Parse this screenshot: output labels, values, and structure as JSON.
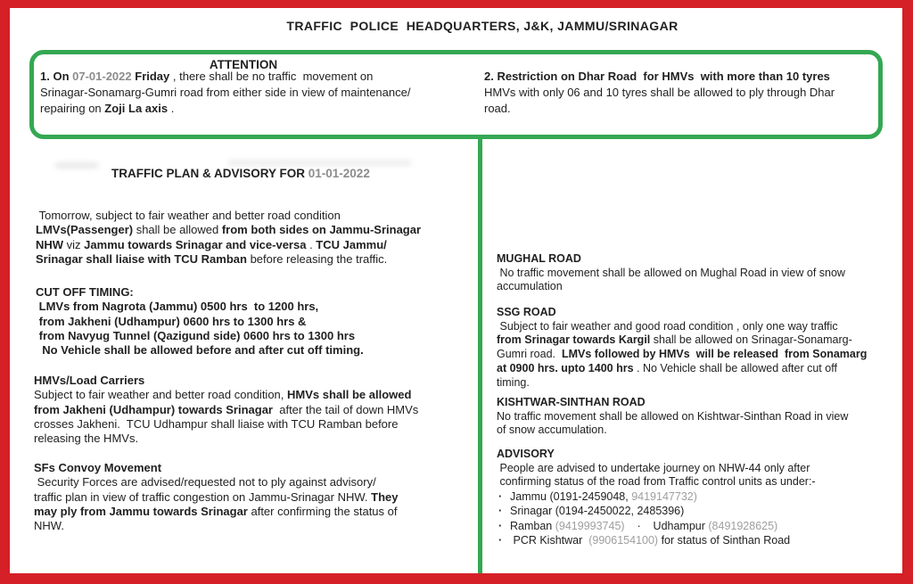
{
  "page": {
    "title": "TRAFFIC  POLICE  HEADQUARTERS, J&K, JAMMU/SRINAGAR",
    "colors": {
      "red": "#d42026",
      "green": "#34a853",
      "gray": "#8c8c8c",
      "gray_light": "#9e9e9e",
      "ink": "#212121"
    }
  },
  "attention": {
    "heading": "ATTENTION",
    "item1": [
      {
        "t": "1. On ",
        "b": true
      },
      {
        "t": "07-01-2022",
        "b": true,
        "c": "gray"
      },
      {
        "t": " "
      },
      {
        "t": "Friday",
        "b": true
      },
      {
        "t": " , there shall be no traffic  movement on"
      },
      {
        "t": "Srinagar-Sonamarg-Gumri road from either side in view of maintenance/",
        "nl": true
      },
      {
        "t": "repairing on ",
        "nl": true
      },
      {
        "t": "Zoji La axis",
        "b": true
      },
      {
        "t": " ."
      }
    ],
    "item2": [
      {
        "t": "2. Restriction on Dhar Road  for HMVs  with more than 10 tyres",
        "b": true
      },
      {
        "t": "HMVs with only 06 and 10 tyres shall be allowed to ply through Dhar",
        "nl": true
      },
      {
        "t": "road.",
        "nl": true
      }
    ]
  },
  "plan": {
    "heading": [
      {
        "t": "TRAFFIC PLAN & ADVISORY FOR ",
        "b": true
      },
      {
        "t": "01-01-2022",
        "b": true,
        "c": "gray"
      }
    ],
    "intro": [
      {
        "t": " Tomorrow, subject to fair weather and better road condition"
      },
      {
        "t": "LMVs(Passenger)",
        "b": true,
        "nl": true
      },
      {
        "t": " shall be allowed "
      },
      {
        "t": "from both sides on Jammu-Srinagar",
        "b": true
      },
      {
        "t": "NHW",
        "b": true,
        "nl": true
      },
      {
        "t": " viz "
      },
      {
        "t": "Jammu towards Srinagar and vice-versa",
        "b": true
      },
      {
        "t": " . "
      },
      {
        "t": "TCU Jammu/",
        "b": true
      },
      {
        "t": "Srinagar shall liaise with TCU Ramban",
        "b": true,
        "nl": true
      },
      {
        "t": " before releasing the traffic."
      }
    ],
    "cutoff": {
      "heading": "CUT OFF TIMING:",
      "body": [
        {
          "t": " LMVs from Nagrota (Jammu) 0500 hrs  to 1200 hrs,",
          "b": true
        },
        {
          "t": " from Jakheni (Udhampur) 0600 hrs to 1300 hrs &",
          "b": true,
          "nl": true
        },
        {
          "t": " from Navyug Tunnel (Qazigund side) 0600 hrs to 1300 hrs",
          "b": true,
          "nl": true
        },
        {
          "t": "  No Vehicle shall be allowed before and after cut off timing.",
          "b": true,
          "nl": true
        }
      ]
    },
    "hmvs": {
      "heading": "HMVs/Load Carriers",
      "body": [
        {
          "t": "Subject to fair weather and better road condition, "
        },
        {
          "t": "HMVs shall be allowed",
          "b": true
        },
        {
          "t": "from Jakheni (Udhampur) towards Srinagar",
          "b": true,
          "nl": true
        },
        {
          "t": "  after the tail of down HMVs"
        },
        {
          "t": "crosses Jakheni.  TCU Udhampur shall liaise with TCU Ramban before",
          "nl": true
        },
        {
          "t": "releasing the HMVs.",
          "nl": true
        }
      ]
    },
    "sfs": {
      "heading": "SFs Convoy Movement",
      "body": [
        {
          "t": " Security Forces are advised/requested not to ply against advisory/"
        },
        {
          "t": "traffic plan in view of traffic congestion on Jammu-Srinagar NHW. ",
          "nl": true
        },
        {
          "t": "They",
          "b": true
        },
        {
          "t": "may ply from Jammu towards Srinagar",
          "b": true,
          "nl": true
        },
        {
          "t": " after confirming the status of"
        },
        {
          "t": "NHW.",
          "nl": true
        }
      ]
    }
  },
  "roads": {
    "mughal": {
      "heading": "MUGHAL ROAD",
      "body": [
        {
          "t": " No traffic movement shall be allowed on Mughal Road in view of snow"
        },
        {
          "t": "accumulation",
          "nl": true
        }
      ]
    },
    "ssg": {
      "heading": "SSG ROAD",
      "body": [
        {
          "t": " Subject to fair weather and good road condition , only one way traffic"
        },
        {
          "t": "from Srinagar towards Kargil",
          "b": true,
          "nl": true
        },
        {
          "t": " shall be allowed on Srinagar-Sonamarg-"
        },
        {
          "t": "Gumri road.  ",
          "nl": true
        },
        {
          "t": "LMVs followed by HMVs  will be released  from Sonamarg",
          "b": true
        },
        {
          "t": "at 0900 hrs. upto 1400 hrs",
          "b": true,
          "nl": true
        },
        {
          "t": " . No Vehicle shall be allowed after cut off"
        },
        {
          "t": "timing.",
          "nl": true
        }
      ]
    },
    "kishtwar": {
      "heading": "KISHTWAR-SINTHAN ROAD",
      "body": [
        {
          "t": "No traffic movement shall be allowed on Kishtwar-Sinthan Road in view"
        },
        {
          "t": "of snow accumulation.",
          "nl": true
        }
      ]
    },
    "advisory": {
      "heading": "ADVISORY",
      "body": [
        {
          "t": " People are advised to undertake journey on NHW-44 only after"
        },
        {
          "t": " confirming status of the road from Traffic control units as under:-",
          "nl": true
        }
      ],
      "bullet_glyph": "·",
      "bullets": [
        [
          {
            "t": "Jammu (0191-2459048, "
          },
          {
            "t": "9419147732)",
            "c": "gray_light"
          }
        ],
        [
          {
            "t": "Srinagar (0194-2450022, 2485396)"
          }
        ],
        [
          {
            "t": "Ramban "
          },
          {
            "t": "(9419993745)",
            "c": "gray_light"
          },
          {
            "t": "    ·    Udhampur "
          },
          {
            "t": "(8491928625)",
            "c": "gray_light"
          }
        ],
        [
          {
            "t": " PCR Kishtwar  "
          },
          {
            "t": "(9906154100)",
            "c": "gray_light"
          },
          {
            "t": " for status of Sinthan Road"
          }
        ]
      ]
    }
  }
}
